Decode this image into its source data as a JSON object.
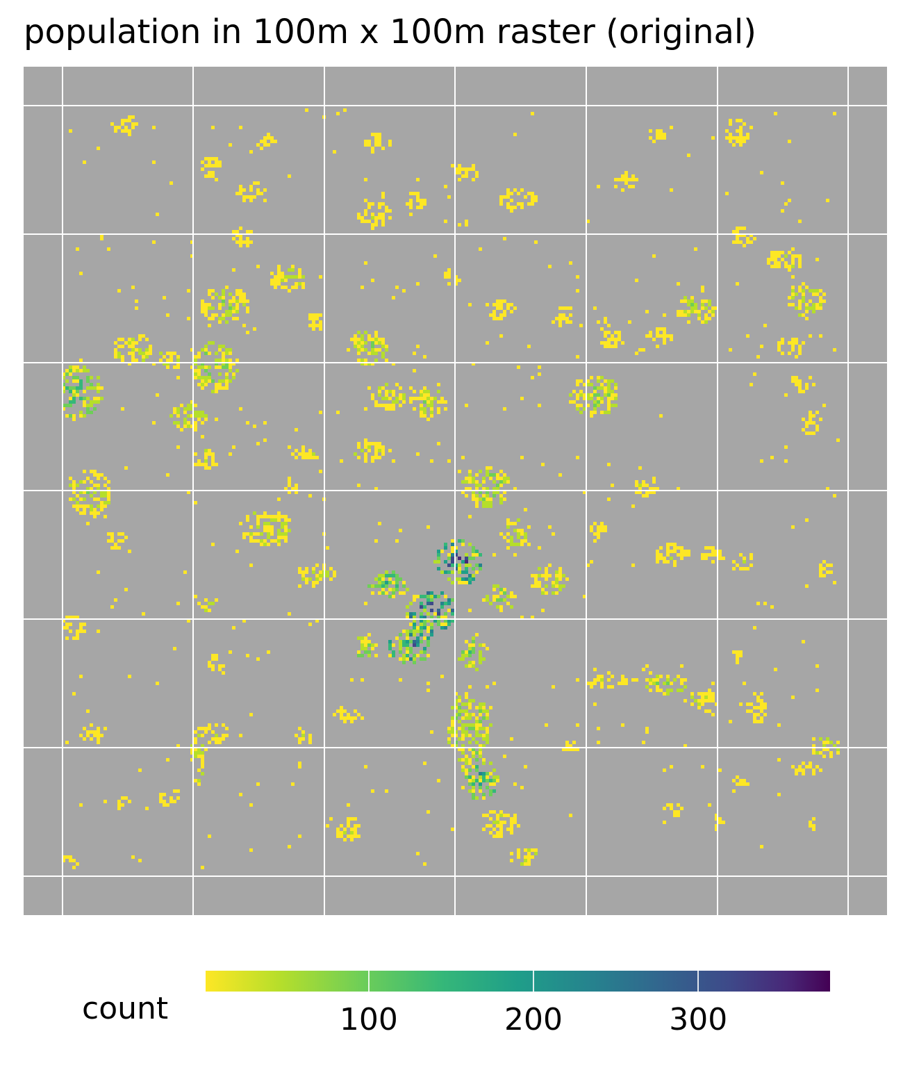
{
  "chart_data": {
    "type": "heatmap",
    "title": "population in 100m x 100m raster (original)",
    "panel_background": "#a6a6a6",
    "grid": true,
    "axes_labels_shown": false,
    "legend": {
      "title": "count",
      "position": "bottom",
      "palette": "viridis (reversed: yellow = low, purple = high)",
      "range": [
        1,
        380
      ],
      "ticks": [
        100,
        200,
        300
      ],
      "tick_labels": [
        "100",
        "200",
        "300"
      ]
    },
    "description_values": {
      "typical_cell_count": "1-60 (yellow)",
      "dense_core_cell_count": "100-250 (green/teal)",
      "max_cell_count": 380
    }
  },
  "colors": {
    "low": "#fde725",
    "mid": "#21918c",
    "high": "#440154",
    "background": "#a6a6a6",
    "grid": "#ffffff"
  }
}
